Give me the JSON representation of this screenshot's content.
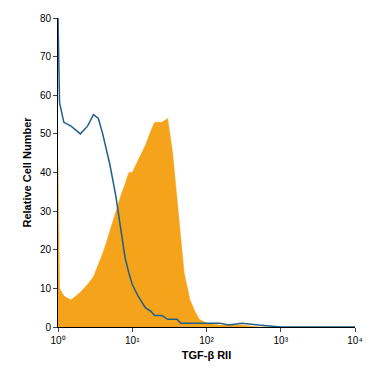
{
  "chart_data": {
    "type": "line",
    "x_label": "TGF-β RII",
    "y_label": "Relative Cell Number",
    "log": "x",
    "grid": false,
    "x": [
      1,
      1.05,
      1.2,
      1.5,
      2,
      2.5,
      3,
      3.5,
      4,
      4.5,
      5,
      6,
      7,
      8,
      9,
      10,
      12,
      15,
      18,
      20,
      25,
      30,
      35,
      40,
      45,
      50,
      60,
      70,
      80,
      100,
      150,
      200,
      300,
      500,
      1000,
      3000,
      10000
    ],
    "series": [
      {
        "type": "area",
        "color": "#f5a31a",
        "values": [
          42,
          10,
          8,
          7,
          9,
          11,
          13,
          16,
          19,
          22,
          25,
          30,
          34,
          37,
          40,
          40,
          43,
          47,
          51,
          53,
          53,
          54,
          45,
          33,
          22,
          14,
          7,
          4,
          2,
          1,
          0.5,
          0.5,
          0.5,
          0,
          0,
          0,
          0
        ]
      },
      {
        "type": "line",
        "color": "#1f5f8b",
        "values": [
          80,
          58,
          53,
          52,
          50,
          52,
          55,
          54,
          50,
          46,
          42,
          34,
          25,
          18,
          14,
          11,
          8,
          5,
          4,
          3,
          3,
          2,
          2,
          2,
          1,
          1,
          1,
          1,
          1,
          1,
          1,
          0.5,
          1,
          0.5,
          0,
          0,
          0
        ]
      }
    ],
    "xlim": [
      1,
      10000
    ],
    "xticks": [
      {
        "value": 1,
        "label": "10⁰"
      },
      {
        "value": 10,
        "label": "10¹"
      },
      {
        "value": 100,
        "label": "10²"
      },
      {
        "value": 1000,
        "label": "10³"
      },
      {
        "value": 10000,
        "label": "10⁴"
      }
    ],
    "ylim": [
      0,
      80
    ],
    "yticks": [
      0,
      10,
      20,
      30,
      40,
      50,
      60,
      70,
      80
    ]
  }
}
